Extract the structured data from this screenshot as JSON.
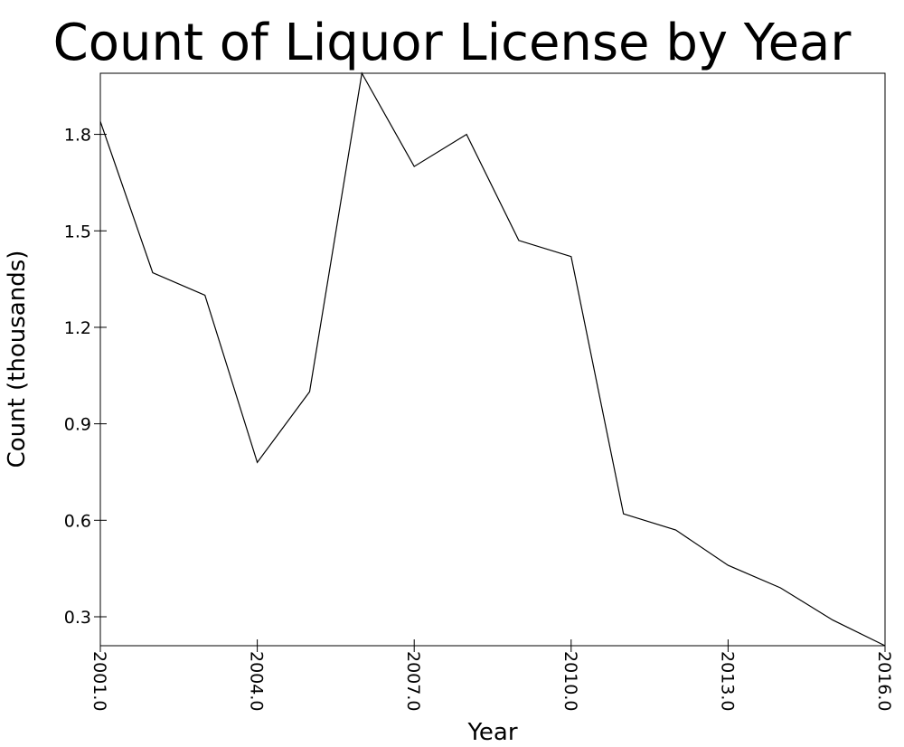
{
  "chart_data": {
    "type": "line",
    "title": "Count of Liquor License by Year",
    "xlabel": "Year",
    "ylabel": "Count (thousands)",
    "x": [
      2001,
      2002,
      2003,
      2004,
      2005,
      2006,
      2007,
      2008,
      2009,
      2010,
      2011,
      2012,
      2013,
      2014,
      2015,
      2016
    ],
    "series": [
      {
        "values": [
          1.84,
          1.37,
          1.3,
          0.78,
          1.0,
          1.99,
          1.7,
          1.8,
          1.47,
          1.42,
          0.62,
          0.57,
          0.46,
          0.39,
          0.29,
          0.21
        ]
      }
    ],
    "xlim": [
      2001,
      2016
    ],
    "ylim": [
      0.21,
      1.99
    ],
    "xticks": [
      2001,
      2004,
      2007,
      2010,
      2013,
      2016
    ],
    "xtick_labels": [
      "2001.0",
      "2004.0",
      "2007.0",
      "2010.0",
      "2013.0",
      "2016.0"
    ],
    "yticks": [
      0.3,
      0.6,
      0.9,
      1.2,
      1.5,
      1.8
    ],
    "ytick_labels": [
      "0.3",
      "0.6",
      "0.9",
      "1.2",
      "1.5",
      "1.8"
    ],
    "grid": false,
    "legend": "none",
    "line_color": "#000000"
  }
}
